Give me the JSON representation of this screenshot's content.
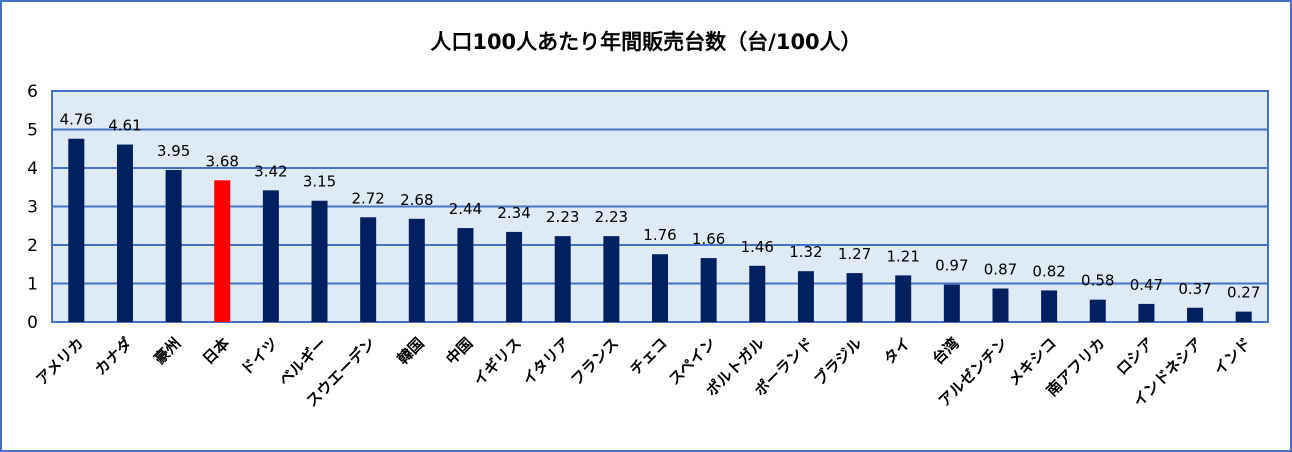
{
  "chart_data": {
    "type": "bar",
    "title": "人口100人あたり年間販売台数（台/100人）",
    "categories": [
      "アメリカ",
      "カナダ",
      "豪州",
      "日本",
      "ドイツ",
      "ベルギー",
      "スウエーデン",
      "韓国",
      "中国",
      "イギリス",
      "イタリア",
      "フランス",
      "チェコ",
      "スペイン",
      "ポルトガル",
      "ポーランド",
      "ブラジル",
      "タイ",
      "台湾",
      "アルゼンチン",
      "メキシコ",
      "南アフリカ",
      "ロシア",
      "インドネシア",
      "インド"
    ],
    "values": [
      4.76,
      4.61,
      3.95,
      3.68,
      3.42,
      3.15,
      2.72,
      2.68,
      2.44,
      2.34,
      2.23,
      2.23,
      1.76,
      1.66,
      1.46,
      1.32,
      1.27,
      1.21,
      0.97,
      0.87,
      0.82,
      0.58,
      0.47,
      0.37,
      0.27
    ],
    "data_labels": [
      "4.76",
      "4.61",
      "3.95",
      "3.68",
      "3.42",
      "3.15",
      "2.72",
      "2.68",
      "2.44",
      "2.34",
      "2.23",
      "2.23",
      "1.76",
      "1.66",
      "1.46",
      "1.32",
      "1.27",
      "1.21",
      "0.97",
      "0.87",
      "0.82",
      "0.58",
      "0.47",
      "0.37",
      "0.27"
    ],
    "yticks": [
      "0",
      "1",
      "2",
      "3",
      "4",
      "5",
      "6"
    ],
    "ylim": [
      0,
      6
    ],
    "grid": true,
    "legend": "none",
    "colors": {
      "bar": "#002060",
      "highlight": "#FF0000",
      "highlight_category": "日本",
      "plot_bg": "#DEEAF6",
      "grid": "#4472C4",
      "border": "#4472C4"
    }
  }
}
